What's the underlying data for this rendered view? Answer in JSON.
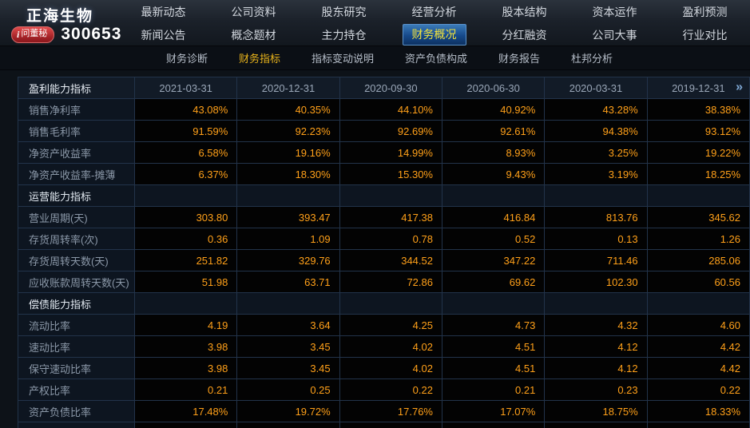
{
  "header": {
    "company_name": "正海生物",
    "stock_code": "300653",
    "badge_icon": "i",
    "badge_label": "问董秘",
    "nav_row1": [
      "最新动态",
      "公司资料",
      "股东研究",
      "经营分析",
      "股本结构",
      "资本运作",
      "盈利预测"
    ],
    "nav_row2": [
      "新闻公告",
      "概念题材",
      "主力持仓",
      "财务概况",
      "分红融资",
      "公司大事",
      "行业对比"
    ],
    "active_nav": "财务概况"
  },
  "subnav": {
    "items": [
      "财务诊断",
      "财务指标",
      "指标变动说明",
      "资产负债构成",
      "财务报告",
      "杜邦分析"
    ],
    "active": "财务指标"
  },
  "table": {
    "corner_label": "盈利能力指标",
    "columns": [
      "2021-03-31",
      "2020-12-31",
      "2020-09-30",
      "2020-06-30",
      "2020-03-31",
      "2019-12-31"
    ],
    "next_arrow": "»",
    "rows": [
      {
        "type": "data",
        "label": "销售净利率",
        "values": [
          "43.08%",
          "40.35%",
          "44.10%",
          "40.92%",
          "43.28%",
          "38.38%"
        ]
      },
      {
        "type": "data",
        "label": "销售毛利率",
        "values": [
          "91.59%",
          "92.23%",
          "92.69%",
          "92.61%",
          "94.38%",
          "93.12%"
        ]
      },
      {
        "type": "data",
        "label": "净资产收益率",
        "values": [
          "6.58%",
          "19.16%",
          "14.99%",
          "8.93%",
          "3.25%",
          "19.22%"
        ]
      },
      {
        "type": "data",
        "label": "净资产收益率-摊薄",
        "values": [
          "6.37%",
          "18.30%",
          "15.30%",
          "9.43%",
          "3.19%",
          "18.25%"
        ]
      },
      {
        "type": "section",
        "label": "运营能力指标",
        "values": [
          "",
          "",
          "",
          "",
          "",
          ""
        ]
      },
      {
        "type": "data",
        "label": "营业周期(天)",
        "values": [
          "303.80",
          "393.47",
          "417.38",
          "416.84",
          "813.76",
          "345.62"
        ]
      },
      {
        "type": "data",
        "label": "存货周转率(次)",
        "values": [
          "0.36",
          "1.09",
          "0.78",
          "0.52",
          "0.13",
          "1.26"
        ]
      },
      {
        "type": "data",
        "label": "存货周转天数(天)",
        "values": [
          "251.82",
          "329.76",
          "344.52",
          "347.22",
          "711.46",
          "285.06"
        ]
      },
      {
        "type": "data",
        "label": "应收账款周转天数(天)",
        "values": [
          "51.98",
          "63.71",
          "72.86",
          "69.62",
          "102.30",
          "60.56"
        ]
      },
      {
        "type": "section",
        "label": "偿债能力指标",
        "values": [
          "",
          "",
          "",
          "",
          "",
          ""
        ]
      },
      {
        "type": "data",
        "label": "流动比率",
        "values": [
          "4.19",
          "3.64",
          "4.25",
          "4.73",
          "4.32",
          "4.60"
        ]
      },
      {
        "type": "data",
        "label": "速动比率",
        "values": [
          "3.98",
          "3.45",
          "4.02",
          "4.51",
          "4.12",
          "4.42"
        ]
      },
      {
        "type": "data",
        "label": "保守速动比率",
        "values": [
          "3.98",
          "3.45",
          "4.02",
          "4.51",
          "4.12",
          "4.42"
        ]
      },
      {
        "type": "data",
        "label": "产权比率",
        "values": [
          "0.21",
          "0.25",
          "0.22",
          "0.21",
          "0.23",
          "0.22"
        ]
      },
      {
        "type": "data",
        "label": "资产负债比率",
        "values": [
          "17.48%",
          "19.72%",
          "17.76%",
          "17.07%",
          "18.75%",
          "18.33%"
        ]
      }
    ]
  },
  "colors": {
    "value_text": "#ffa019",
    "active_tab_text": "#f0e23c",
    "active_subnav_text": "#e9b41c",
    "badge_bg": "#b5262b",
    "table_cell_bg": "#030303",
    "label_col_bg": "#0d1520"
  }
}
